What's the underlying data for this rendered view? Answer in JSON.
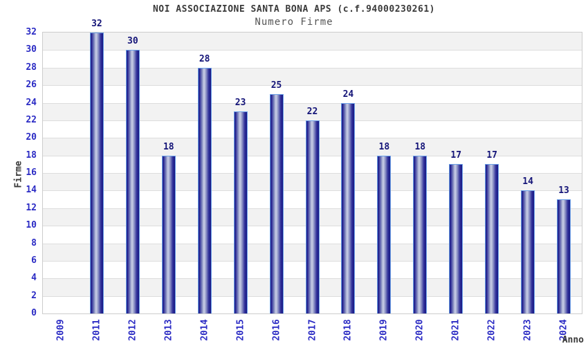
{
  "header": {
    "title": "NOI ASSOCIAZIONE SANTA BONA APS (c.f.94000230261)",
    "subtitle": "Numero Firme"
  },
  "chart_data": {
    "type": "bar",
    "title": "NOI ASSOCIAZIONE SANTA BONA APS (c.f.94000230261)",
    "subtitle": "Numero Firme",
    "xlabel": "Anno",
    "ylabel": "Firme",
    "categories": [
      "2009",
      "2011",
      "2012",
      "2013",
      "2014",
      "2015",
      "2016",
      "2017",
      "2018",
      "2019",
      "2020",
      "2021",
      "2022",
      "2023",
      "2024"
    ],
    "values": [
      null,
      32,
      30,
      18,
      28,
      23,
      25,
      22,
      24,
      18,
      18,
      17,
      17,
      14,
      13
    ],
    "ylim": [
      0,
      32
    ],
    "yticks": [
      0,
      2,
      4,
      6,
      8,
      10,
      12,
      14,
      16,
      18,
      20,
      22,
      24,
      26,
      28,
      30,
      32
    ],
    "grid": true,
    "legend": "none",
    "bar_value_labels": true,
    "band_pattern": "alternating gray/white horizontal bands, gray at top"
  },
  "colors": {
    "bar-edge": "#181882",
    "bar-mid": "#30309a",
    "bar-highlight": "#ccd1e8",
    "bar-outline": "#6ba0e8",
    "value-label": "#141478",
    "axis-tick-label": "#2b2bc4",
    "title": "#3a3a3a",
    "subtitle": "#555555",
    "axis-title": "#3a3a3a",
    "band-gray": "#f2f2f2",
    "band-white": "#ffffff",
    "grid-line": "#dddddd",
    "plot-border": "#cccccc",
    "background": "#ffffff"
  }
}
